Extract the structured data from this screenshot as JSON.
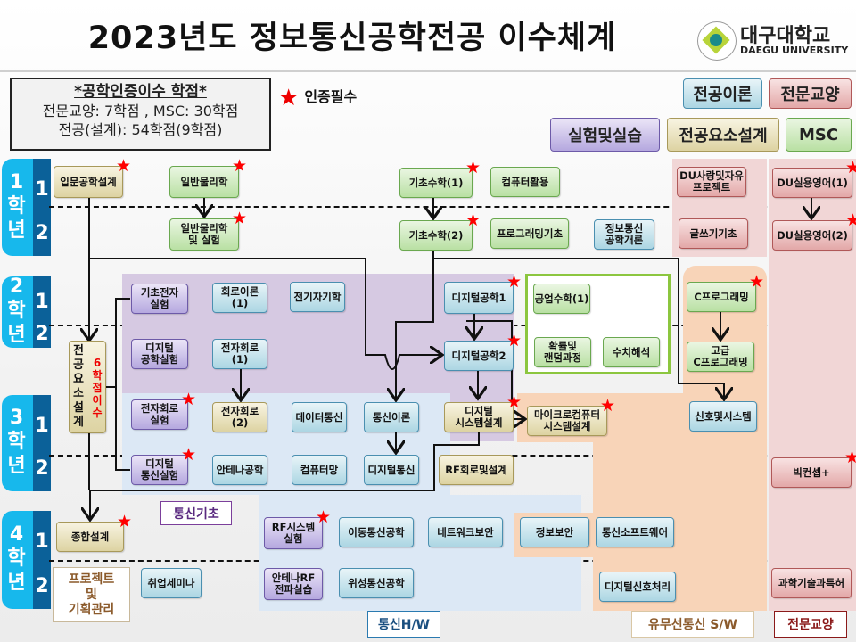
{
  "title": "2023년도 정보통신공학전공 이수체계",
  "logo": {
    "name_kr": "대구대학교",
    "name_en": "DAEGU UNIVERSITY"
  },
  "credits": {
    "heading": "*공학인증이수 학점*",
    "line1": "전문교양: 7학점 , MSC: 30학점",
    "line2": "전공(설계): 54학점(9학점)"
  },
  "required_legend": {
    "icon": "red-star",
    "label": "인증필수"
  },
  "legend": {
    "major_theory": "전공이론",
    "liberal_arts": "전문교양",
    "lab": "실험및실습",
    "design": "전공요소설계",
    "msc": "MSC"
  },
  "colors": {
    "major_theory": "#acd6e3",
    "liberal_arts": "#e3a8a8",
    "lab": "#b5a8df",
    "design": "#ddd3a2",
    "msc": "#b9e0a3",
    "star": "#ff0000"
  },
  "years": [
    {
      "year": "1",
      "label": "학년",
      "semesters": [
        "1",
        "2"
      ]
    },
    {
      "year": "2",
      "label": "학년",
      "semesters": [
        "1",
        "2"
      ]
    },
    {
      "year": "3",
      "label": "학년",
      "semesters": [
        "1",
        "2"
      ]
    },
    {
      "year": "4",
      "label": "학년",
      "semesters": [
        "1",
        "2"
      ]
    }
  ],
  "courses": [
    {
      "id": "intro-design",
      "label": "입문공학설계",
      "type": "yellow",
      "required": true
    },
    {
      "id": "physics",
      "label": "일반물리학",
      "type": "green",
      "required": true
    },
    {
      "id": "math1",
      "label": "기초수학(1)",
      "type": "green",
      "required": true
    },
    {
      "id": "computer-use",
      "label": "컴퓨터활용",
      "type": "green",
      "required": false
    },
    {
      "id": "du-love",
      "label": "DU사랑및자유\n프로젝트",
      "type": "pink",
      "required": false
    },
    {
      "id": "du-eng1",
      "label": "DU실용영어(1)",
      "type": "pink",
      "required": true
    },
    {
      "id": "physics-lab",
      "label": "일반물리학\n및 실험",
      "type": "green",
      "required": true
    },
    {
      "id": "math2",
      "label": "기초수학(2)",
      "type": "green",
      "required": true
    },
    {
      "id": "prog-basic",
      "label": "프로그래밍기초",
      "type": "green",
      "required": false
    },
    {
      "id": "ice-intro",
      "label": "정보통신\n공학개론",
      "type": "blue",
      "required": false
    },
    {
      "id": "writing",
      "label": "글쓰기기초",
      "type": "pink",
      "required": false
    },
    {
      "id": "du-eng2",
      "label": "DU실용영어(2)",
      "type": "pink",
      "required": true
    },
    {
      "id": "elec-lab",
      "label": "기초전자\n실험",
      "type": "purple",
      "required": false
    },
    {
      "id": "circuit1",
      "label": "회로이론(1)",
      "type": "blue",
      "required": false
    },
    {
      "id": "em",
      "label": "전기자기학",
      "type": "blue",
      "required": false
    },
    {
      "id": "digital1",
      "label": "디지털공학1",
      "type": "blue",
      "required": true
    },
    {
      "id": "eng-math1",
      "label": "공업수학(1)",
      "type": "green",
      "required": false
    },
    {
      "id": "c-prog",
      "label": "C프로그래밍",
      "type": "green",
      "required": true
    },
    {
      "id": "digital-lab",
      "label": "디지털\n공학실험",
      "type": "purple",
      "required": false
    },
    {
      "id": "electronics1",
      "label": "전자회로(1)",
      "type": "blue",
      "required": false
    },
    {
      "id": "digital2",
      "label": "디지털공학2",
      "type": "blue",
      "required": true
    },
    {
      "id": "prob",
      "label": "확률및\n랜덤과정",
      "type": "green",
      "required": false
    },
    {
      "id": "numerical",
      "label": "수치해석",
      "type": "green",
      "required": false
    },
    {
      "id": "adv-c",
      "label": "고급\nC프로그래밍",
      "type": "green",
      "required": false
    },
    {
      "id": "major-design",
      "label": "전\n공\n요\n소\n설\n계",
      "type": "yellow",
      "required": false
    },
    {
      "id": "elec-circuit-lab",
      "label": "전자회로\n실험",
      "type": "purple",
      "required": true
    },
    {
      "id": "electronics2",
      "label": "전자회로(2)",
      "type": "yellow",
      "required": false
    },
    {
      "id": "data-comm",
      "label": "데이터통신",
      "type": "blue",
      "required": false
    },
    {
      "id": "comm-theory",
      "label": "통신이론",
      "type": "blue",
      "required": false
    },
    {
      "id": "digital-sys",
      "label": "디지털\n시스템설계",
      "type": "yellow",
      "required": true
    },
    {
      "id": "micro",
      "label": "마이크로컴퓨터\n시스템설계",
      "type": "yellow",
      "required": true
    },
    {
      "id": "signals",
      "label": "신호및시스템",
      "type": "blue",
      "required": false
    },
    {
      "id": "digicomm-lab",
      "label": "디지털\n통신실험",
      "type": "purple",
      "required": true
    },
    {
      "id": "antenna",
      "label": "안테나공학",
      "type": "blue",
      "required": false
    },
    {
      "id": "network",
      "label": "컴퓨터망",
      "type": "blue",
      "required": false
    },
    {
      "id": "digicomm",
      "label": "디지털통신",
      "type": "blue",
      "required": false
    },
    {
      "id": "rf-circuit",
      "label": "RF회로및설계",
      "type": "yellow",
      "required": false
    },
    {
      "id": "big-concept",
      "label": "빅컨셉+",
      "type": "pink",
      "required": true
    },
    {
      "id": "capstone",
      "label": "종합설계",
      "type": "yellow",
      "required": true
    },
    {
      "id": "rf-lab",
      "label": "RF시스템\n실험",
      "type": "purple",
      "required": true
    },
    {
      "id": "mobile",
      "label": "이동통신공학",
      "type": "blue",
      "required": false
    },
    {
      "id": "net-sec",
      "label": "네트워크보안",
      "type": "blue",
      "required": false
    },
    {
      "id": "info-sec",
      "label": "정보보안",
      "type": "blue",
      "required": false
    },
    {
      "id": "comm-sw",
      "label": "통신소프트웨어",
      "type": "blue",
      "required": false
    },
    {
      "id": "job-seminar",
      "label": "취업세미나",
      "type": "blue",
      "required": false
    },
    {
      "id": "antenna-rf-lab",
      "label": "안테나RF\n전파실습",
      "type": "purple",
      "required": false
    },
    {
      "id": "satellite",
      "label": "위성통신공학",
      "type": "blue",
      "required": false
    },
    {
      "id": "dsp",
      "label": "디지털신호처리",
      "type": "blue",
      "required": false
    },
    {
      "id": "patent",
      "label": "과학기술과특허",
      "type": "pink",
      "required": false
    }
  ],
  "design_credit_note": "6\n학\n점\n이\n수",
  "groups": {
    "comm_basic": "통신기초",
    "project_mgmt": "프로젝트\n및\n기획관리",
    "comm_hw": "통신H/W",
    "comm_sw": "유무선통신 S/W",
    "liberal": "전문교양"
  }
}
